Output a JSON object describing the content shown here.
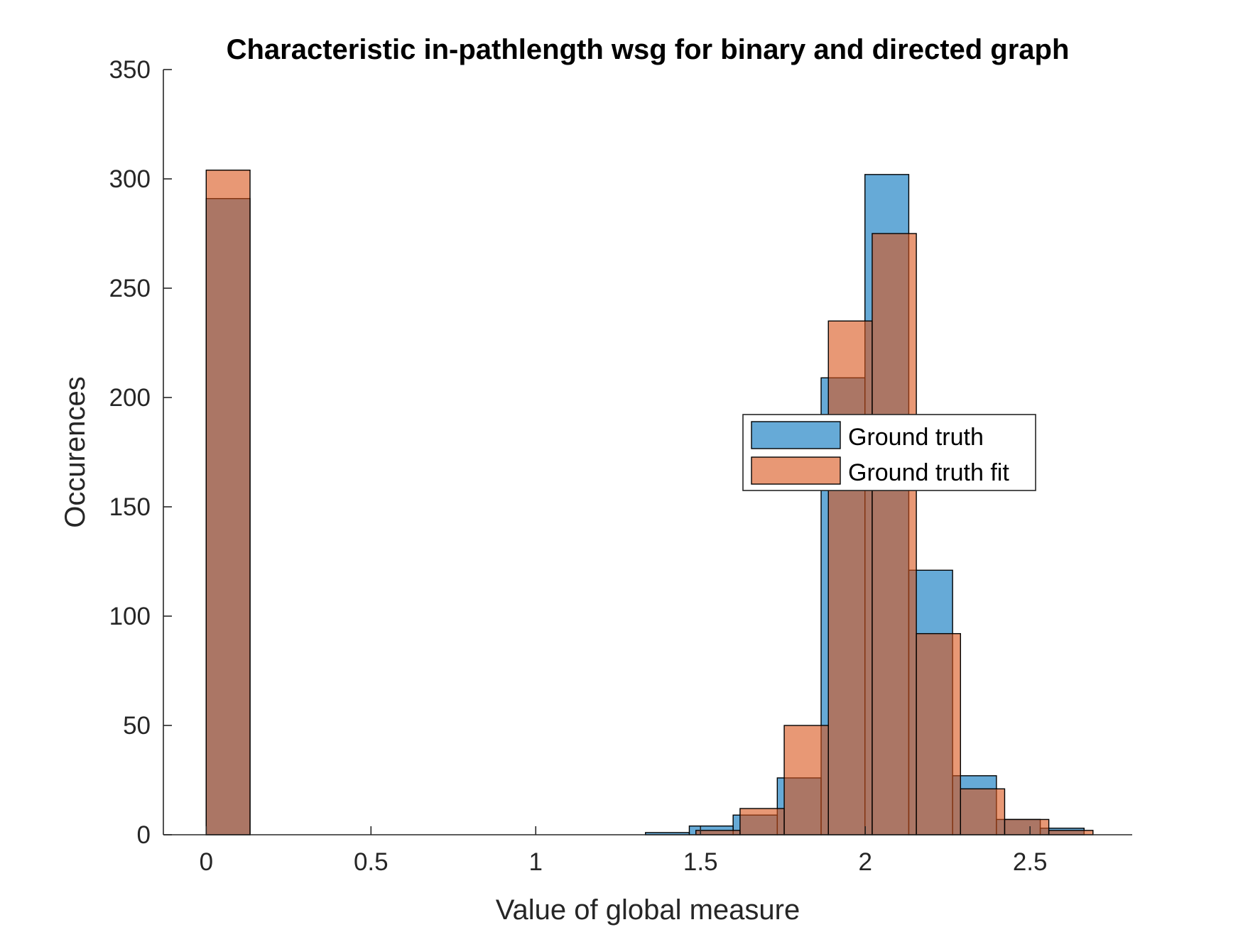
{
  "chart_data": {
    "type": "bar",
    "subtype": "overlaid-histogram",
    "title": "Characteristic in-pathlength wsg for binary and directed graph",
    "xlabel": "Value of global measure",
    "ylabel": "Occurences",
    "xlim": [
      -0.13,
      2.81
    ],
    "ylim": [
      0,
      350
    ],
    "xticks": [
      "0",
      "0.5",
      "1",
      "1.5",
      "2",
      "2.5"
    ],
    "xtick_values": [
      0,
      0.5,
      1,
      1.5,
      2,
      2.5
    ],
    "yticks": [
      "0",
      "50",
      "100",
      "150",
      "200",
      "250",
      "300",
      "350"
    ],
    "ytick_values": [
      0,
      50,
      100,
      150,
      200,
      250,
      300,
      350
    ],
    "grid": false,
    "legend_position": "center-right",
    "series": [
      {
        "name": "Ground truth",
        "color": "#0072BD",
        "face_alpha": 0.6,
        "bins": [
          {
            "x0": 0.0,
            "x1": 0.133,
            "count": 291
          },
          {
            "x0": 1.333,
            "x1": 1.466,
            "count": 1
          },
          {
            "x0": 1.466,
            "x1": 1.599,
            "count": 4
          },
          {
            "x0": 1.599,
            "x1": 1.733,
            "count": 9
          },
          {
            "x0": 1.733,
            "x1": 1.866,
            "count": 26
          },
          {
            "x0": 1.866,
            "x1": 1.999,
            "count": 209
          },
          {
            "x0": 1.999,
            "x1": 2.132,
            "count": 302
          },
          {
            "x0": 2.132,
            "x1": 2.265,
            "count": 121
          },
          {
            "x0": 2.265,
            "x1": 2.398,
            "count": 27
          },
          {
            "x0": 2.398,
            "x1": 2.531,
            "count": 7
          },
          {
            "x0": 2.531,
            "x1": 2.664,
            "count": 3
          }
        ]
      },
      {
        "name": "Ground truth fit",
        "color": "#D95319",
        "face_alpha": 0.6,
        "bins": [
          {
            "x0": 0.0,
            "x1": 0.133,
            "count": 304
          },
          {
            "x0": 1.486,
            "x1": 1.62,
            "count": 2
          },
          {
            "x0": 1.62,
            "x1": 1.754,
            "count": 12
          },
          {
            "x0": 1.754,
            "x1": 1.888,
            "count": 50
          },
          {
            "x0": 1.888,
            "x1": 2.021,
            "count": 235
          },
          {
            "x0": 2.021,
            "x1": 2.155,
            "count": 275
          },
          {
            "x0": 2.155,
            "x1": 2.289,
            "count": 92
          },
          {
            "x0": 2.289,
            "x1": 2.423,
            "count": 21
          },
          {
            "x0": 2.423,
            "x1": 2.557,
            "count": 7
          },
          {
            "x0": 2.557,
            "x1": 2.691,
            "count": 2
          }
        ]
      }
    ]
  }
}
